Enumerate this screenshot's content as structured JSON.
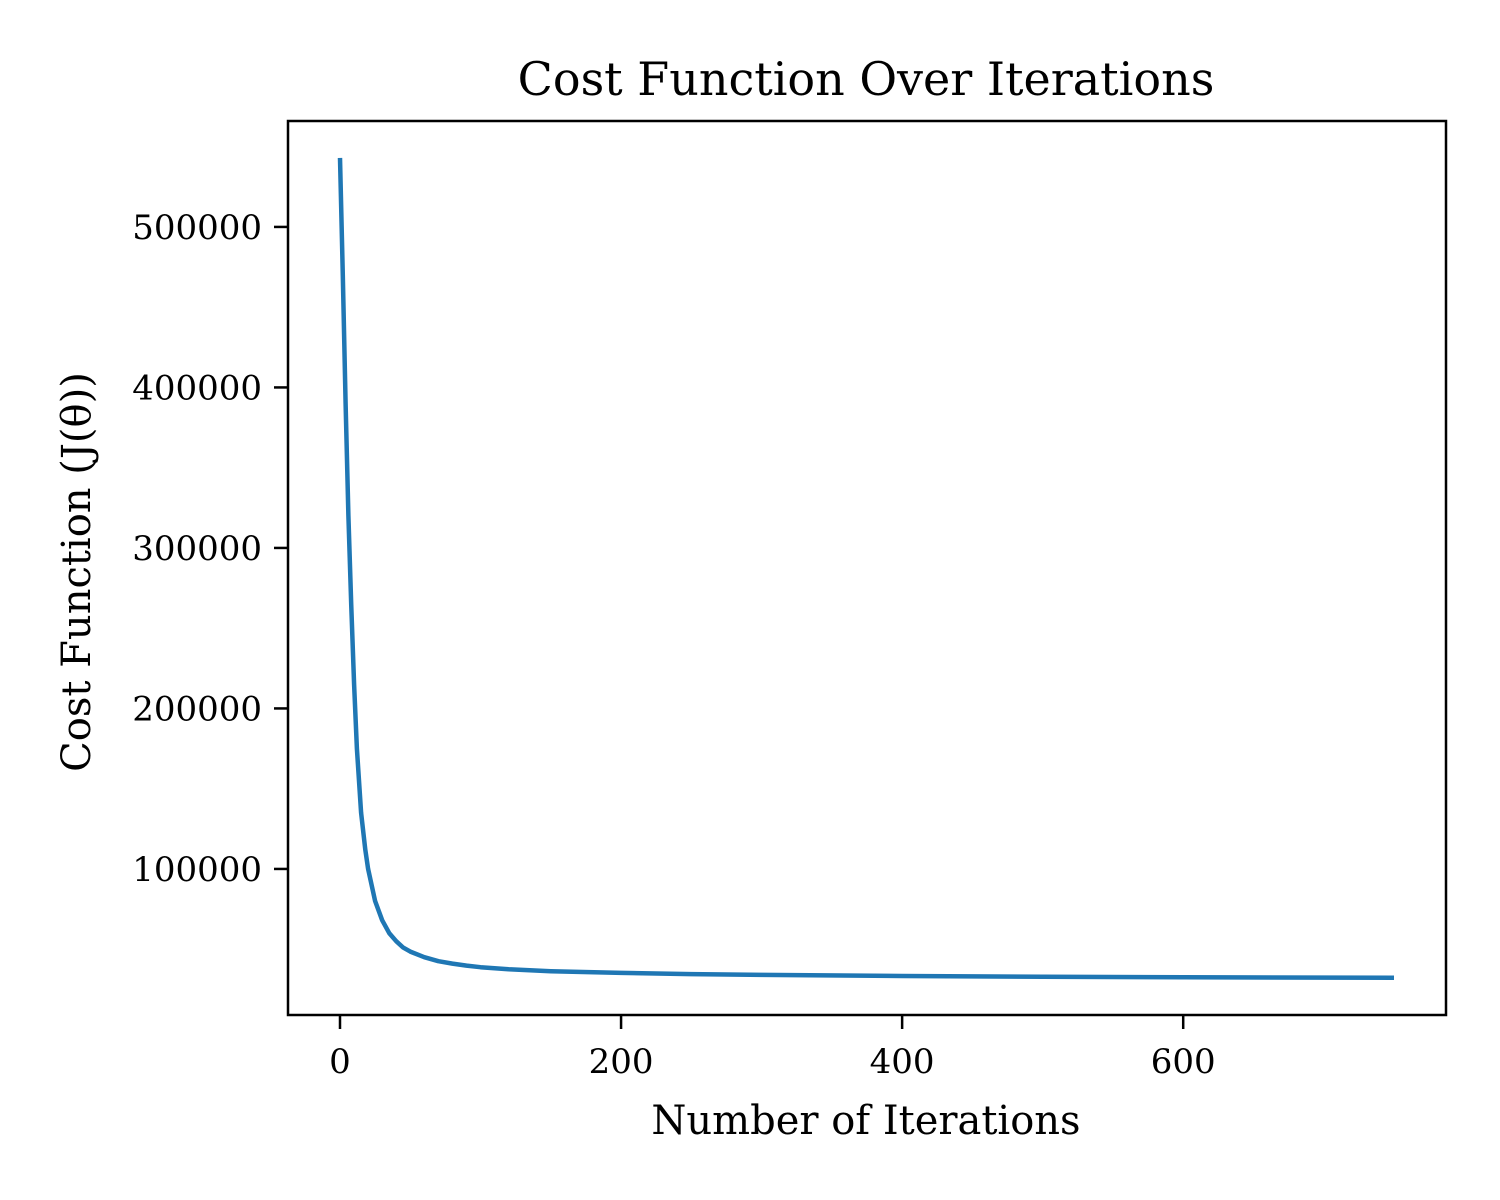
{
  "chart_data": {
    "type": "line",
    "title": "Cost Function Over Iterations",
    "xlabel": "Number of Iterations",
    "ylabel": "Cost Function (J(θ))",
    "xlim": [
      -37,
      787
    ],
    "ylim": [
      9000,
      566000
    ],
    "grid": false,
    "x_ticks": [
      0,
      200,
      400,
      600
    ],
    "x_tick_labels": [
      "0",
      "200",
      "400",
      "600"
    ],
    "y_ticks": [
      100000,
      200000,
      300000,
      400000,
      500000
    ],
    "y_tick_labels": [
      "100000",
      "200000",
      "300000",
      "400000",
      "500000"
    ],
    "colors": {
      "line": "#1f77b4",
      "axes": "#000000"
    },
    "series": [
      {
        "x": [
          0,
          2,
          4,
          6,
          8,
          10,
          12,
          15,
          18,
          20,
          25,
          30,
          35,
          40,
          45,
          50,
          60,
          70,
          80,
          90,
          100,
          120,
          150,
          200,
          250,
          300,
          400,
          500,
          600,
          750
        ],
        "values": [
          543000,
          470000,
          390000,
          320000,
          265000,
          215000,
          175000,
          135000,
          112000,
          100000,
          80000,
          68000,
          60000,
          55000,
          51000,
          48500,
          45000,
          42500,
          41000,
          39800,
          38800,
          37500,
          36300,
          35200,
          34500,
          34000,
          33300,
          32800,
          32500,
          32200
        ]
      }
    ]
  }
}
